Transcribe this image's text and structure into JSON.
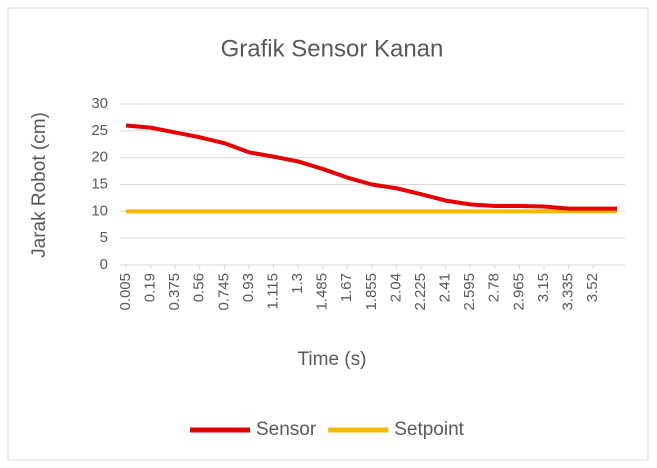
{
  "chart_data": {
    "type": "line",
    "title": "Grafik Sensor Kanan",
    "x_label": "Time (s)",
    "y_label": "Jarak Robot (cm)",
    "x": [
      0.005,
      0.19,
      0.375,
      0.56,
      0.745,
      0.93,
      1.115,
      1.3,
      1.485,
      1.67,
      1.855,
      2.04,
      2.225,
      2.41,
      2.595,
      2.78,
      2.965,
      3.15,
      3.335,
      3.52,
      3.7
    ],
    "series": [
      {
        "name": "Sensor",
        "color": "#e60000",
        "values": [
          26,
          25.6,
          24.7,
          23.8,
          22.7,
          21,
          20.2,
          19.3,
          17.9,
          16.3,
          15,
          14.3,
          13.2,
          12,
          11.3,
          11,
          11,
          10.9,
          10.5,
          10.5,
          10.5
        ]
      },
      {
        "name": "Setpoint",
        "color": "#f5b800",
        "values": [
          10,
          10,
          10,
          10,
          10,
          10,
          10,
          10,
          10,
          10,
          10,
          10,
          10,
          10,
          10,
          10,
          10,
          10,
          10,
          10,
          10
        ]
      }
    ],
    "xlim": [
      -0.04,
      3.76
    ],
    "xticks": [
      0.005,
      0.19,
      0.375,
      0.56,
      0.745,
      0.93,
      1.115,
      1.3,
      1.485,
      1.67,
      1.855,
      2.04,
      2.225,
      2.41,
      2.595,
      2.78,
      2.965,
      3.15,
      3.335,
      3.52
    ],
    "ylim": [
      0,
      30
    ],
    "yticks": [
      0,
      5,
      10,
      15,
      20,
      25,
      30
    ],
    "grid": true,
    "legend": "bottom"
  }
}
